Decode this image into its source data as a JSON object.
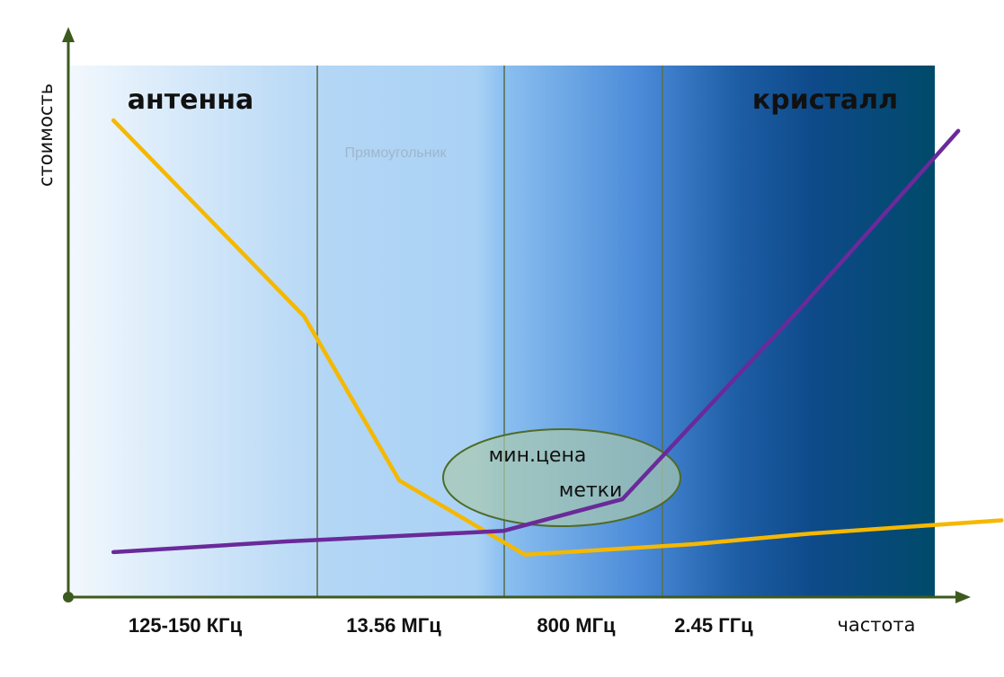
{
  "chart_data": {
    "type": "line",
    "xlabel": "частота",
    "ylabel": "стоимость",
    "categories": [
      "125-150 КГц",
      "13.56 МГц",
      "800 МГц",
      "2.45 ГГц"
    ],
    "series": [
      {
        "name": "антенна",
        "color": "#f5b800",
        "x": [
          0.2,
          1.08,
          1.52,
          2.1,
          2.88,
          3.42,
          4.3
        ],
        "y": [
          9.0,
          5.3,
          2.2,
          0.8,
          1.0,
          1.2,
          1.45
        ]
      },
      {
        "name": "кристалл",
        "color": "#6a2a9a",
        "x": [
          0.2,
          1.0,
          2.0,
          2.55,
          3.36,
          4.1
        ],
        "y": [
          0.85,
          1.05,
          1.25,
          1.85,
          5.4,
          8.8
        ]
      }
    ],
    "annotation": {
      "line1": "мин.цена",
      "line2": "метки"
    },
    "faint_text": "Прямоугольник",
    "grid": "vertical",
    "colors": {
      "axis": "#3d5a1e",
      "grid": "#5c7050",
      "ellipse_fill": "#a8c8b0",
      "ellipse_stroke": "#4f6b28"
    }
  }
}
